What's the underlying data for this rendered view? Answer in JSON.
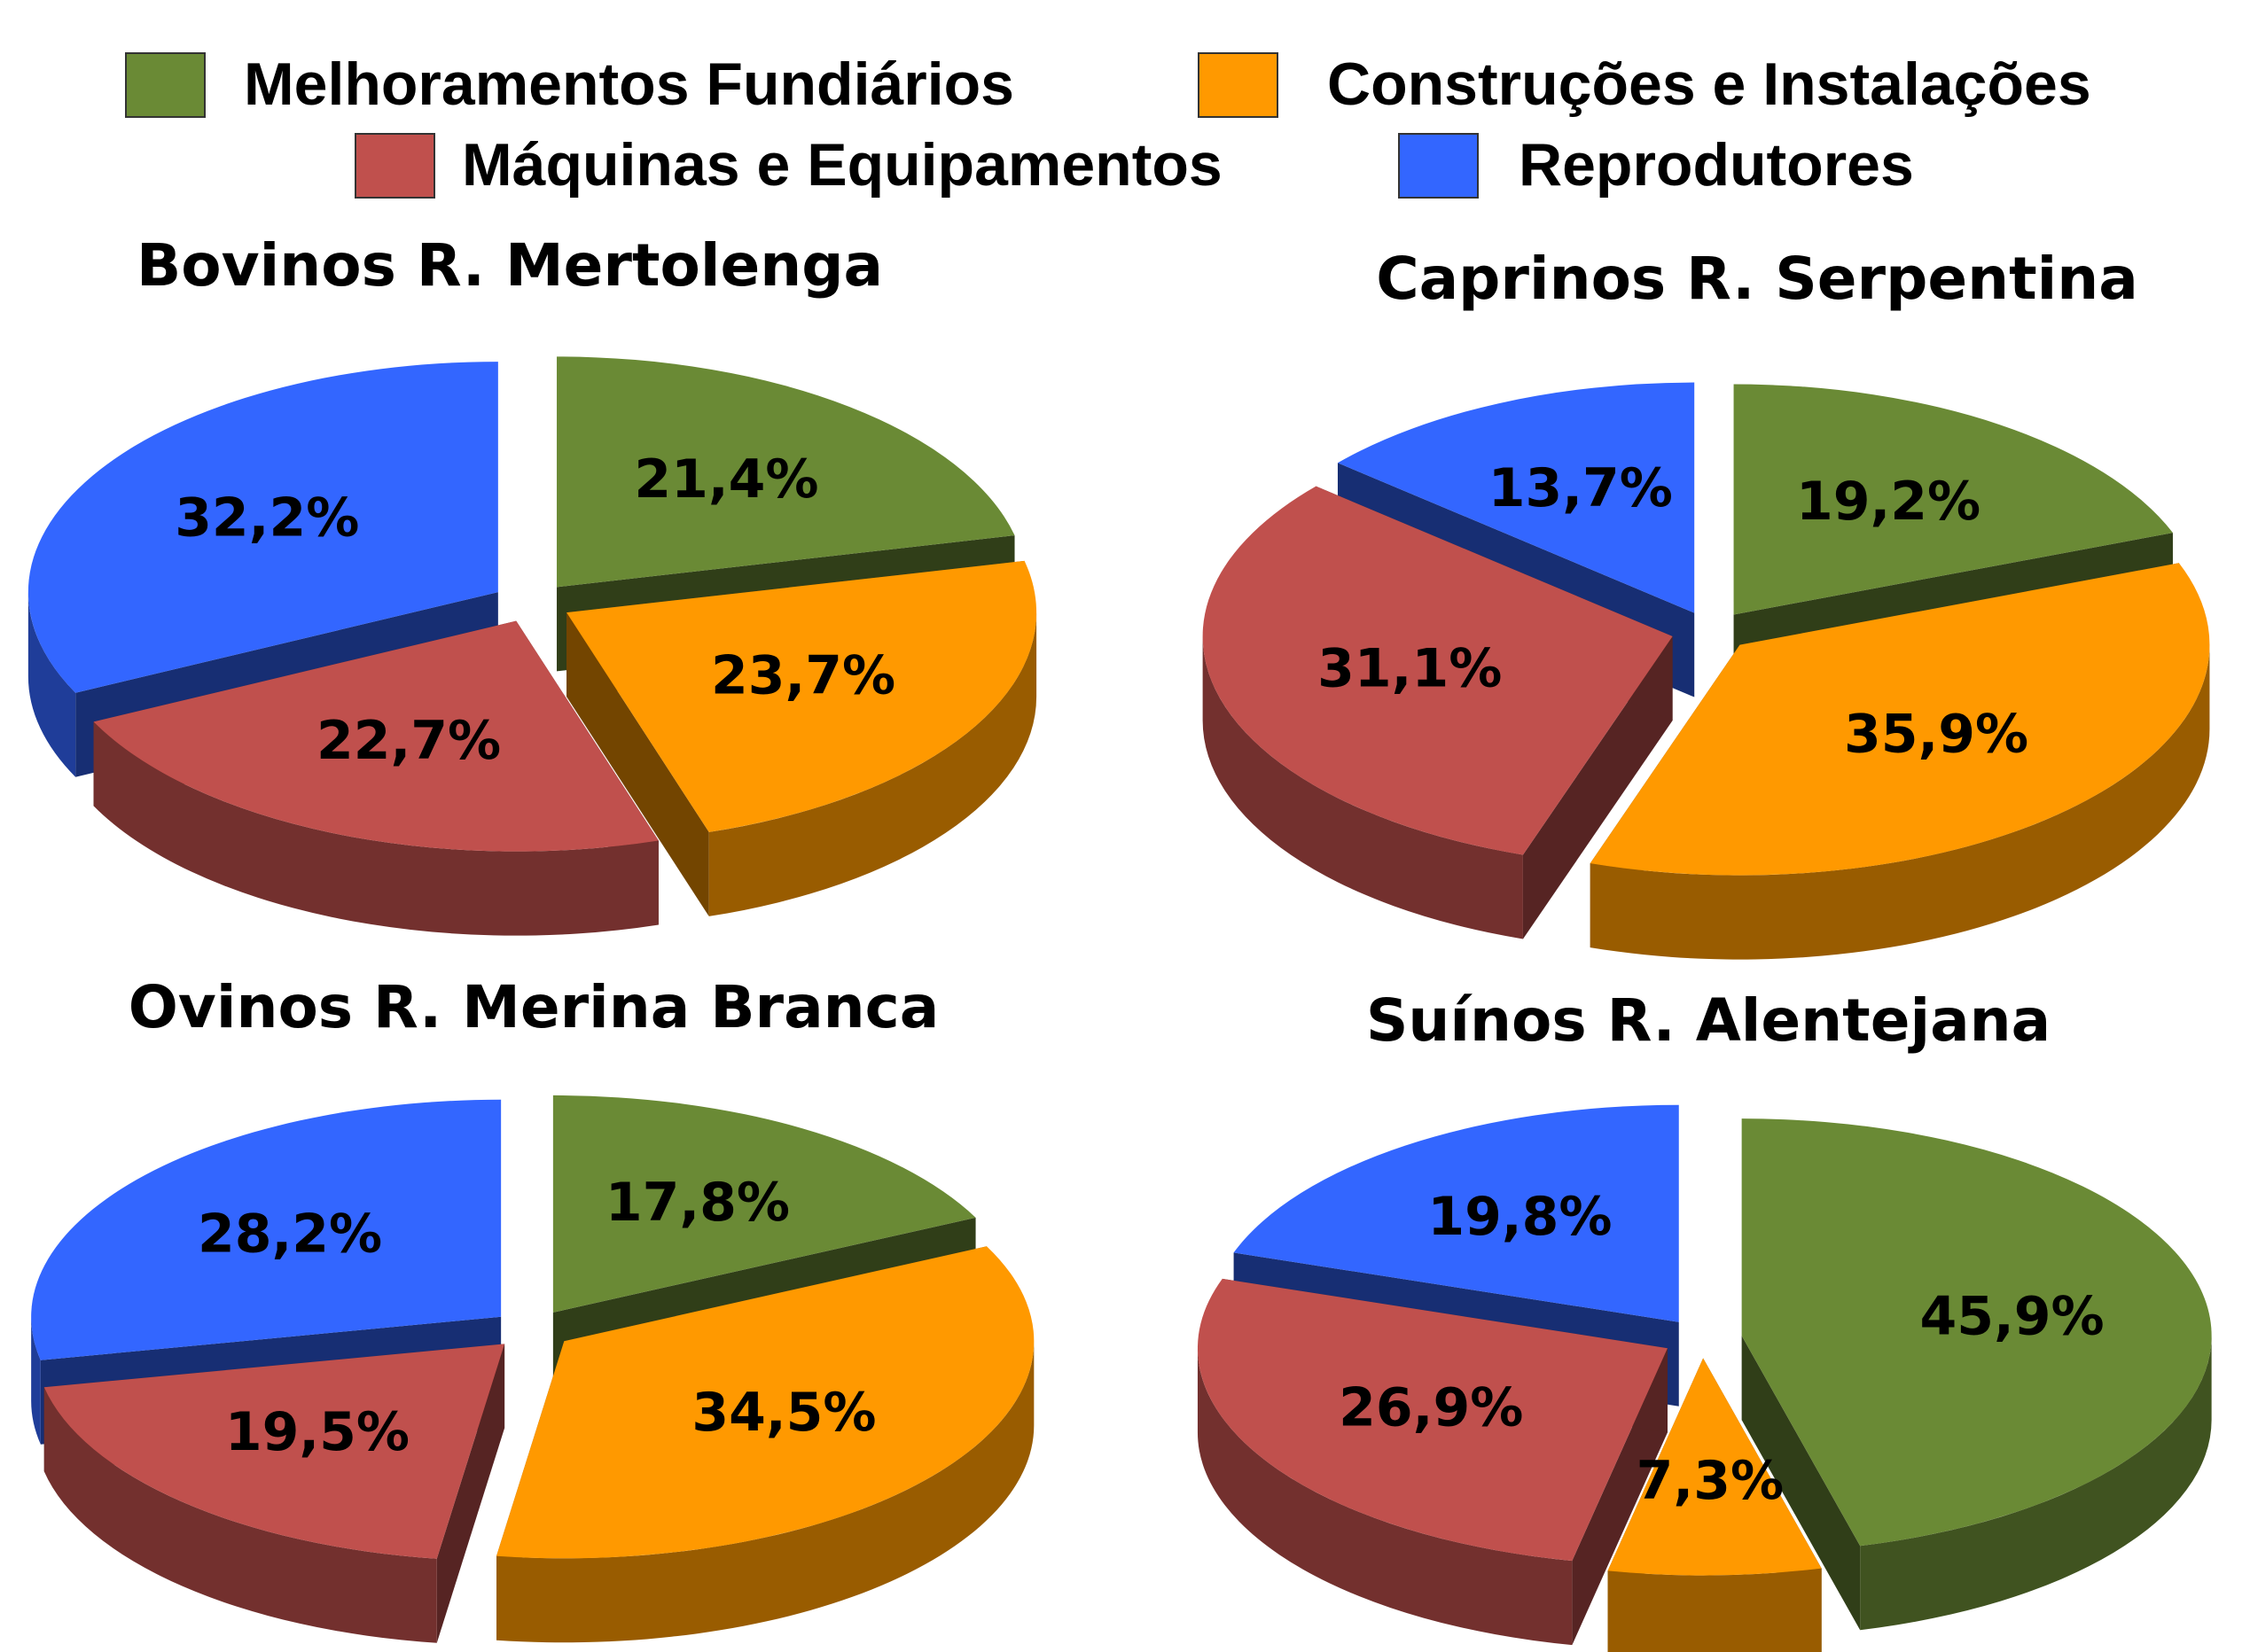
{
  "chart_data": [
    {
      "type": "pie",
      "title": "Bovinos R. Mertolenga",
      "categories": [
        "Melhoramentos Fundiários",
        "Construções e Instalações",
        "Máquinas e Equipamentos",
        "Reprodutores"
      ],
      "values": [
        21.4,
        23.7,
        22.7,
        32.2
      ],
      "value_labels": [
        "21,4%",
        "23,7%",
        "22,7%",
        "32,2%"
      ],
      "colors": [
        "#6a8a35",
        "#ff9900",
        "#c0504d",
        "#3366ff"
      ]
    },
    {
      "type": "pie",
      "title": "Caprinos R. Serpentina",
      "categories": [
        "Melhoramentos Fundiários",
        "Construções e Instalações",
        "Máquinas e Equipamentos",
        "Reprodutores"
      ],
      "values": [
        19.2,
        35.9,
        31.1,
        13.7
      ],
      "value_labels": [
        "19,2%",
        "35,9%",
        "31,1%",
        "13,7%"
      ],
      "colors": [
        "#6a8a35",
        "#ff9900",
        "#c0504d",
        "#3366ff"
      ]
    },
    {
      "type": "pie",
      "title": "Ovinos R.  Merina Branca",
      "categories": [
        "Melhoramentos Fundiários",
        "Construções e Instalações",
        "Máquinas e Equipamentos",
        "Reprodutores"
      ],
      "values": [
        17.8,
        34.5,
        19.5,
        28.2
      ],
      "value_labels": [
        "17,8%",
        "34,5%",
        "19,5%",
        "28,2%"
      ],
      "colors": [
        "#6a8a35",
        "#ff9900",
        "#c0504d",
        "#3366ff"
      ]
    },
    {
      "type": "pie",
      "title": "Suínos R. Alentejana",
      "categories": [
        "Melhoramentos Fundiários",
        "Construções e Instalações",
        "Máquinas e Equipamentos",
        "Reprodutores"
      ],
      "values": [
        45.9,
        7.3,
        26.9,
        19.8
      ],
      "value_labels": [
        "45,9%",
        "7,3%",
        "26,9%",
        "19,8%"
      ],
      "colors": [
        "#6a8a35",
        "#ff9900",
        "#c0504d",
        "#3366ff"
      ]
    }
  ]
}
